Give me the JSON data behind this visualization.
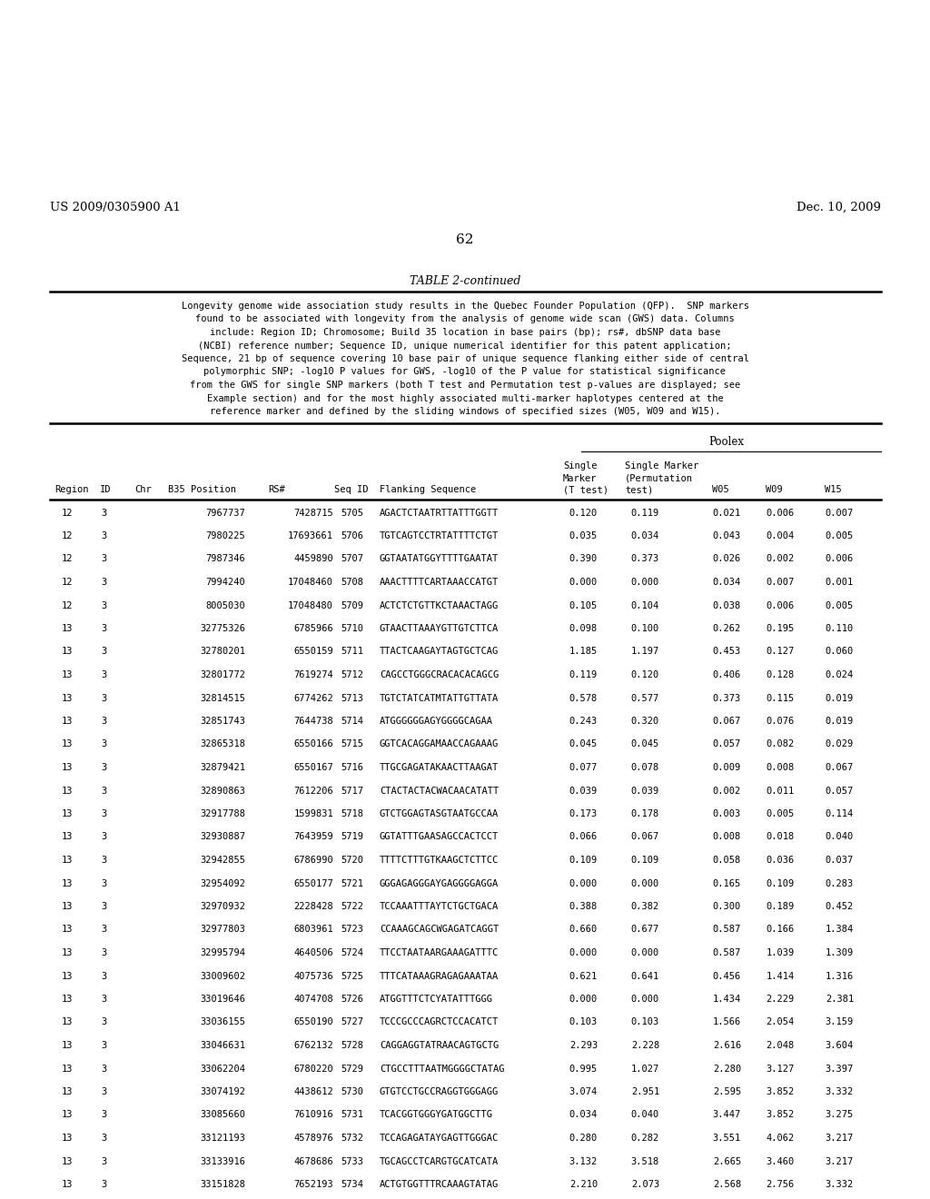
{
  "patent_left": "US 2009/0305900 A1",
  "patent_right": "Dec. 10, 2009",
  "page_num": "62",
  "table_title": "TABLE 2-continued",
  "description": [
    "Longevity genome wide association study results in the Quebec Founder Population (QFP).  SNP markers",
    "found to be associated with longevity from the analysis of genome wide scan (GWS) data. Columns",
    "include: Region ID; Chromosome; Build 35 location in base pairs (bp); rs#, dbSNP data base",
    "(NCBI) reference number; Sequence ID, unique numerical identifier for this patent application;",
    "Sequence, 21 bp of sequence covering 10 base pair of unique sequence flanking either side of central",
    "polymorphic SNP; -log10 P values for GWS, -log10 of the P value for statistical significance",
    "from the GWS for single SNP markers (both T test and Permutation test p-values are displayed; see",
    "Example section) and for the most highly associated multi-marker haplotypes centered at the",
    "reference marker and defined by the sliding windows of specified sizes (W05, W09 and W15)."
  ],
  "poolex_label": "Poolex",
  "rows": [
    [
      "12",
      "3",
      "7967737",
      "7428715",
      "5705",
      "AGACTCTAATRTTATTTGGTT",
      "0.120",
      "0.119",
      "0.021",
      "0.006",
      "0.007"
    ],
    [
      "12",
      "3",
      "7980225",
      "17693661",
      "5706",
      "TGTCAGTCCTRTATTTTCTGT",
      "0.035",
      "0.034",
      "0.043",
      "0.004",
      "0.005"
    ],
    [
      "12",
      "3",
      "7987346",
      "4459890",
      "5707",
      "GGTAATATGGYTTTTGAATAT",
      "0.390",
      "0.373",
      "0.026",
      "0.002",
      "0.006"
    ],
    [
      "12",
      "3",
      "7994240",
      "17048460",
      "5708",
      "AAACTTTTCARTAAACCATGT",
      "0.000",
      "0.000",
      "0.034",
      "0.007",
      "0.001"
    ],
    [
      "12",
      "3",
      "8005030",
      "17048480",
      "5709",
      "ACTCTCTGTTKCTAAACTAGG",
      "0.105",
      "0.104",
      "0.038",
      "0.006",
      "0.005"
    ],
    [
      "13",
      "3",
      "32775326",
      "6785966",
      "5710",
      "GTAACTTAAAYGTTGTCTTCA",
      "0.098",
      "0.100",
      "0.262",
      "0.195",
      "0.110"
    ],
    [
      "13",
      "3",
      "32780201",
      "6550159",
      "5711",
      "TTACTCAAGAYTAGTGCTCAG",
      "1.185",
      "1.197",
      "0.453",
      "0.127",
      "0.060"
    ],
    [
      "13",
      "3",
      "32801772",
      "7619274",
      "5712",
      "CAGCCTGGGCRACACACAGCG",
      "0.119",
      "0.120",
      "0.406",
      "0.128",
      "0.024"
    ],
    [
      "13",
      "3",
      "32814515",
      "6774262",
      "5713",
      "TGTCTATCATMTATTGTTATA",
      "0.578",
      "0.577",
      "0.373",
      "0.115",
      "0.019"
    ],
    [
      "13",
      "3",
      "32851743",
      "7644738",
      "5714",
      "ATGGGGGGAGYGGGGCAGAA",
      "0.243",
      "0.320",
      "0.067",
      "0.076",
      "0.019"
    ],
    [
      "13",
      "3",
      "32865318",
      "6550166",
      "5715",
      "GGTCACAGGAMAACCAGAAAG",
      "0.045",
      "0.045",
      "0.057",
      "0.082",
      "0.029"
    ],
    [
      "13",
      "3",
      "32879421",
      "6550167",
      "5716",
      "TTGCGAGATAKAACTTAAGAT",
      "0.077",
      "0.078",
      "0.009",
      "0.008",
      "0.067"
    ],
    [
      "13",
      "3",
      "32890863",
      "7612206",
      "5717",
      "CTACTACTACWACAACATATT",
      "0.039",
      "0.039",
      "0.002",
      "0.011",
      "0.057"
    ],
    [
      "13",
      "3",
      "32917788",
      "1599831",
      "5718",
      "GTCTGGAGTASGTAATGCCAA",
      "0.173",
      "0.178",
      "0.003",
      "0.005",
      "0.114"
    ],
    [
      "13",
      "3",
      "32930887",
      "7643959",
      "5719",
      "GGTATTTGAASAGCCACTCCT",
      "0.066",
      "0.067",
      "0.008",
      "0.018",
      "0.040"
    ],
    [
      "13",
      "3",
      "32942855",
      "6786990",
      "5720",
      "TTTTCTTTGTKAAGCTCTTCC",
      "0.109",
      "0.109",
      "0.058",
      "0.036",
      "0.037"
    ],
    [
      "13",
      "3",
      "32954092",
      "6550177",
      "5721",
      "GGGAGAGGGAYGAGGGGAGGA",
      "0.000",
      "0.000",
      "0.165",
      "0.109",
      "0.283"
    ],
    [
      "13",
      "3",
      "32970932",
      "2228428",
      "5722",
      "TCCAAATTTAYTCTGCTGACA",
      "0.388",
      "0.382",
      "0.300",
      "0.189",
      "0.452"
    ],
    [
      "13",
      "3",
      "32977803",
      "6803961",
      "5723",
      "CCAAAGCAGCWGAGATCAGGT",
      "0.660",
      "0.677",
      "0.587",
      "0.166",
      "1.384"
    ],
    [
      "13",
      "3",
      "32995794",
      "4640506",
      "5724",
      "TTCCTAATAARGAAAGATTTC",
      "0.000",
      "0.000",
      "0.587",
      "1.039",
      "1.309"
    ],
    [
      "13",
      "3",
      "33009602",
      "4075736",
      "5725",
      "TTTCATAAAGRAGAGAAATAA",
      "0.621",
      "0.641",
      "0.456",
      "1.414",
      "1.316"
    ],
    [
      "13",
      "3",
      "33019646",
      "4074708",
      "5726",
      "ATGGTTTCTCYATATTTGGG",
      "0.000",
      "0.000",
      "1.434",
      "2.229",
      "2.381"
    ],
    [
      "13",
      "3",
      "33036155",
      "6550190",
      "5727",
      "TCCCGCCCAGRCTCCACATCT",
      "0.103",
      "0.103",
      "1.566",
      "2.054",
      "3.159"
    ],
    [
      "13",
      "3",
      "33046631",
      "6762132",
      "5728",
      "CAGGAGGTATRAACAGTGCTG",
      "2.293",
      "2.228",
      "2.616",
      "2.048",
      "3.604"
    ],
    [
      "13",
      "3",
      "33062204",
      "6780220",
      "5729",
      "CTGCCTTTAATMGGGGCTATAG",
      "0.995",
      "1.027",
      "2.280",
      "3.127",
      "3.397"
    ],
    [
      "13",
      "3",
      "33074192",
      "4438612",
      "5730",
      "GTGTCCTGCCRAGGTGGGAGG",
      "3.074",
      "2.951",
      "2.595",
      "3.852",
      "3.332"
    ],
    [
      "13",
      "3",
      "33085660",
      "7610916",
      "5731",
      "TCACGGTGGGYGATGGCTTG",
      "0.034",
      "0.040",
      "3.447",
      "3.852",
      "3.275"
    ],
    [
      "13",
      "3",
      "33121193",
      "4578976",
      "5732",
      "TCCAGAGATAYGAGTTGGGAC",
      "0.280",
      "0.282",
      "3.551",
      "4.062",
      "3.217"
    ],
    [
      "13",
      "3",
      "33133916",
      "4678686",
      "5733",
      "TGCAGCCTCARGTGCATCATA",
      "3.132",
      "3.518",
      "2.665",
      "3.460",
      "3.217"
    ],
    [
      "13",
      "3",
      "33151828",
      "7652193",
      "5734",
      "ACTGTGGTTTRCAAAGTATAG",
      "2.210",
      "2.073",
      "2.568",
      "2.756",
      "3.332"
    ]
  ]
}
